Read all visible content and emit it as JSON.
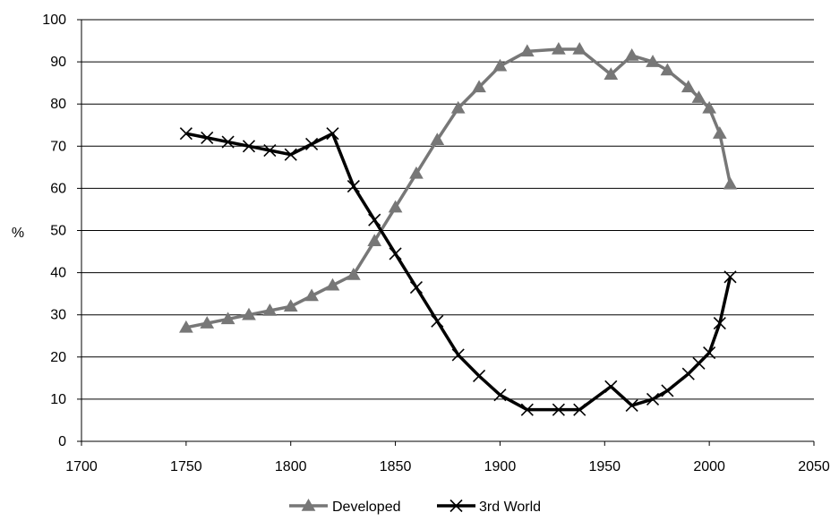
{
  "chart_data": {
    "type": "line",
    "title": "",
    "xlabel": "",
    "ylabel": "%",
    "xlim": [
      1700,
      2050
    ],
    "ylim": [
      0,
      100
    ],
    "xticks": [
      1700,
      1750,
      1800,
      1850,
      1900,
      1950,
      2000,
      2050
    ],
    "yticks": [
      0,
      10,
      20,
      30,
      40,
      50,
      60,
      70,
      80,
      90,
      100
    ],
    "grid": "horizontal",
    "legend_position": "bottom-center",
    "series": [
      {
        "name": "Developed",
        "color": "#777777",
        "marker": "triangle",
        "x": [
          1750,
          1760,
          1770,
          1780,
          1790,
          1800,
          1810,
          1820,
          1830,
          1840,
          1850,
          1860,
          1870,
          1880,
          1890,
          1900,
          1913,
          1928,
          1938,
          1953,
          1963,
          1973,
          1980,
          1990,
          1995,
          2000,
          2005,
          2010
        ],
        "y": [
          27,
          28,
          29,
          30,
          31,
          32,
          34.5,
          37,
          39.5,
          47.5,
          55.5,
          63.5,
          71.5,
          79,
          84,
          89,
          92.5,
          93,
          93,
          87,
          91.5,
          90,
          88,
          84,
          81.5,
          79,
          73,
          61
        ]
      },
      {
        "name": "3rd World",
        "color": "#000000",
        "marker": "x",
        "x": [
          1750,
          1760,
          1770,
          1780,
          1790,
          1800,
          1810,
          1820,
          1830,
          1840,
          1850,
          1860,
          1870,
          1880,
          1890,
          1900,
          1913,
          1928,
          1938,
          1953,
          1963,
          1973,
          1980,
          1990,
          1995,
          2000,
          2005,
          2010
        ],
        "y": [
          73,
          72,
          71,
          70,
          69,
          68,
          70.5,
          73,
          60.5,
          52.5,
          44.5,
          36.5,
          28.5,
          20.5,
          15.5,
          11,
          7.5,
          7.5,
          7.5,
          13,
          8.5,
          10,
          12,
          16,
          18.5,
          21,
          28,
          39
        ]
      }
    ]
  }
}
